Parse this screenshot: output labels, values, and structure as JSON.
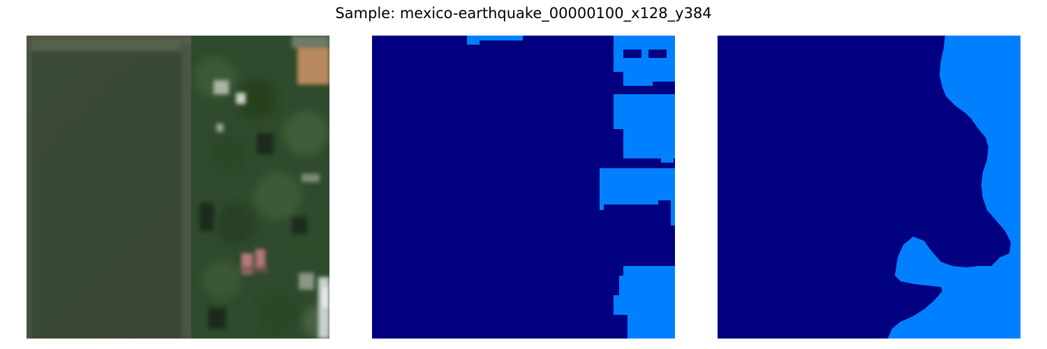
{
  "figure": {
    "title": "Sample: mexico-earthquake_00000100_x128_y384"
  },
  "panels": [
    {
      "kind": "satellite-image"
    },
    {
      "kind": "segmentation-mask",
      "colors": {
        "background": "#000080",
        "foreground": "#0080ff"
      }
    },
    {
      "kind": "segmentation-mask",
      "colors": {
        "background": "#000080",
        "foreground": "#0080ff"
      }
    }
  ]
}
